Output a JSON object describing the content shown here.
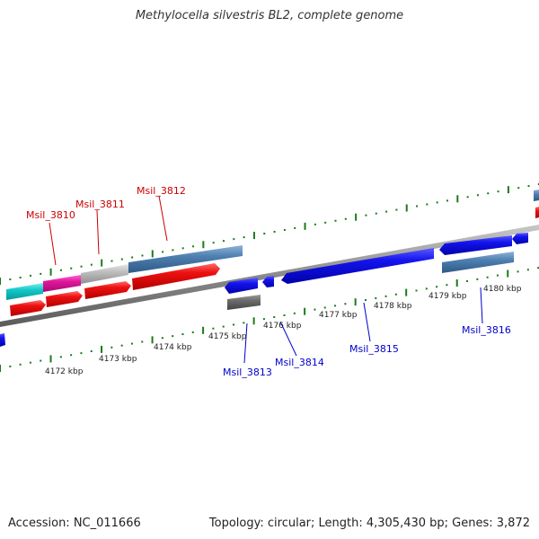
{
  "title": "Methylocella silvestris BL2, complete genome",
  "footer": {
    "accession": "Accession: NC_011666",
    "summary": "Topology: circular; Length: 4,305,430 bp; Genes: 3,872"
  },
  "colors": {
    "axis": "#8a8a8a",
    "tick": "#1a7a1a",
    "forward_label": "#cc0000",
    "reverse_label": "#0000cc"
  },
  "scale_labels": [
    {
      "id": "kbp-4172",
      "text": "4172 kbp"
    },
    {
      "id": "kbp-4173",
      "text": "4173 kbp"
    },
    {
      "id": "kbp-4174",
      "text": "4174 kbp"
    },
    {
      "id": "kbp-4175",
      "text": "4175 kbp"
    },
    {
      "id": "kbp-4176",
      "text": "4176 kbp"
    },
    {
      "id": "kbp-4177",
      "text": "4177 kbp"
    },
    {
      "id": "kbp-4178",
      "text": "4178 kbp"
    },
    {
      "id": "kbp-4179",
      "text": "4179 kbp"
    },
    {
      "id": "kbp-4180",
      "text": "4180 kbp"
    }
  ],
  "genes": {
    "forward": [
      "Msil_3810",
      "Msil_3811",
      "Msil_3812"
    ],
    "reverse": [
      "Msil_3813",
      "Msil_3814",
      "Msil_3815",
      "Msil_3816"
    ]
  }
}
